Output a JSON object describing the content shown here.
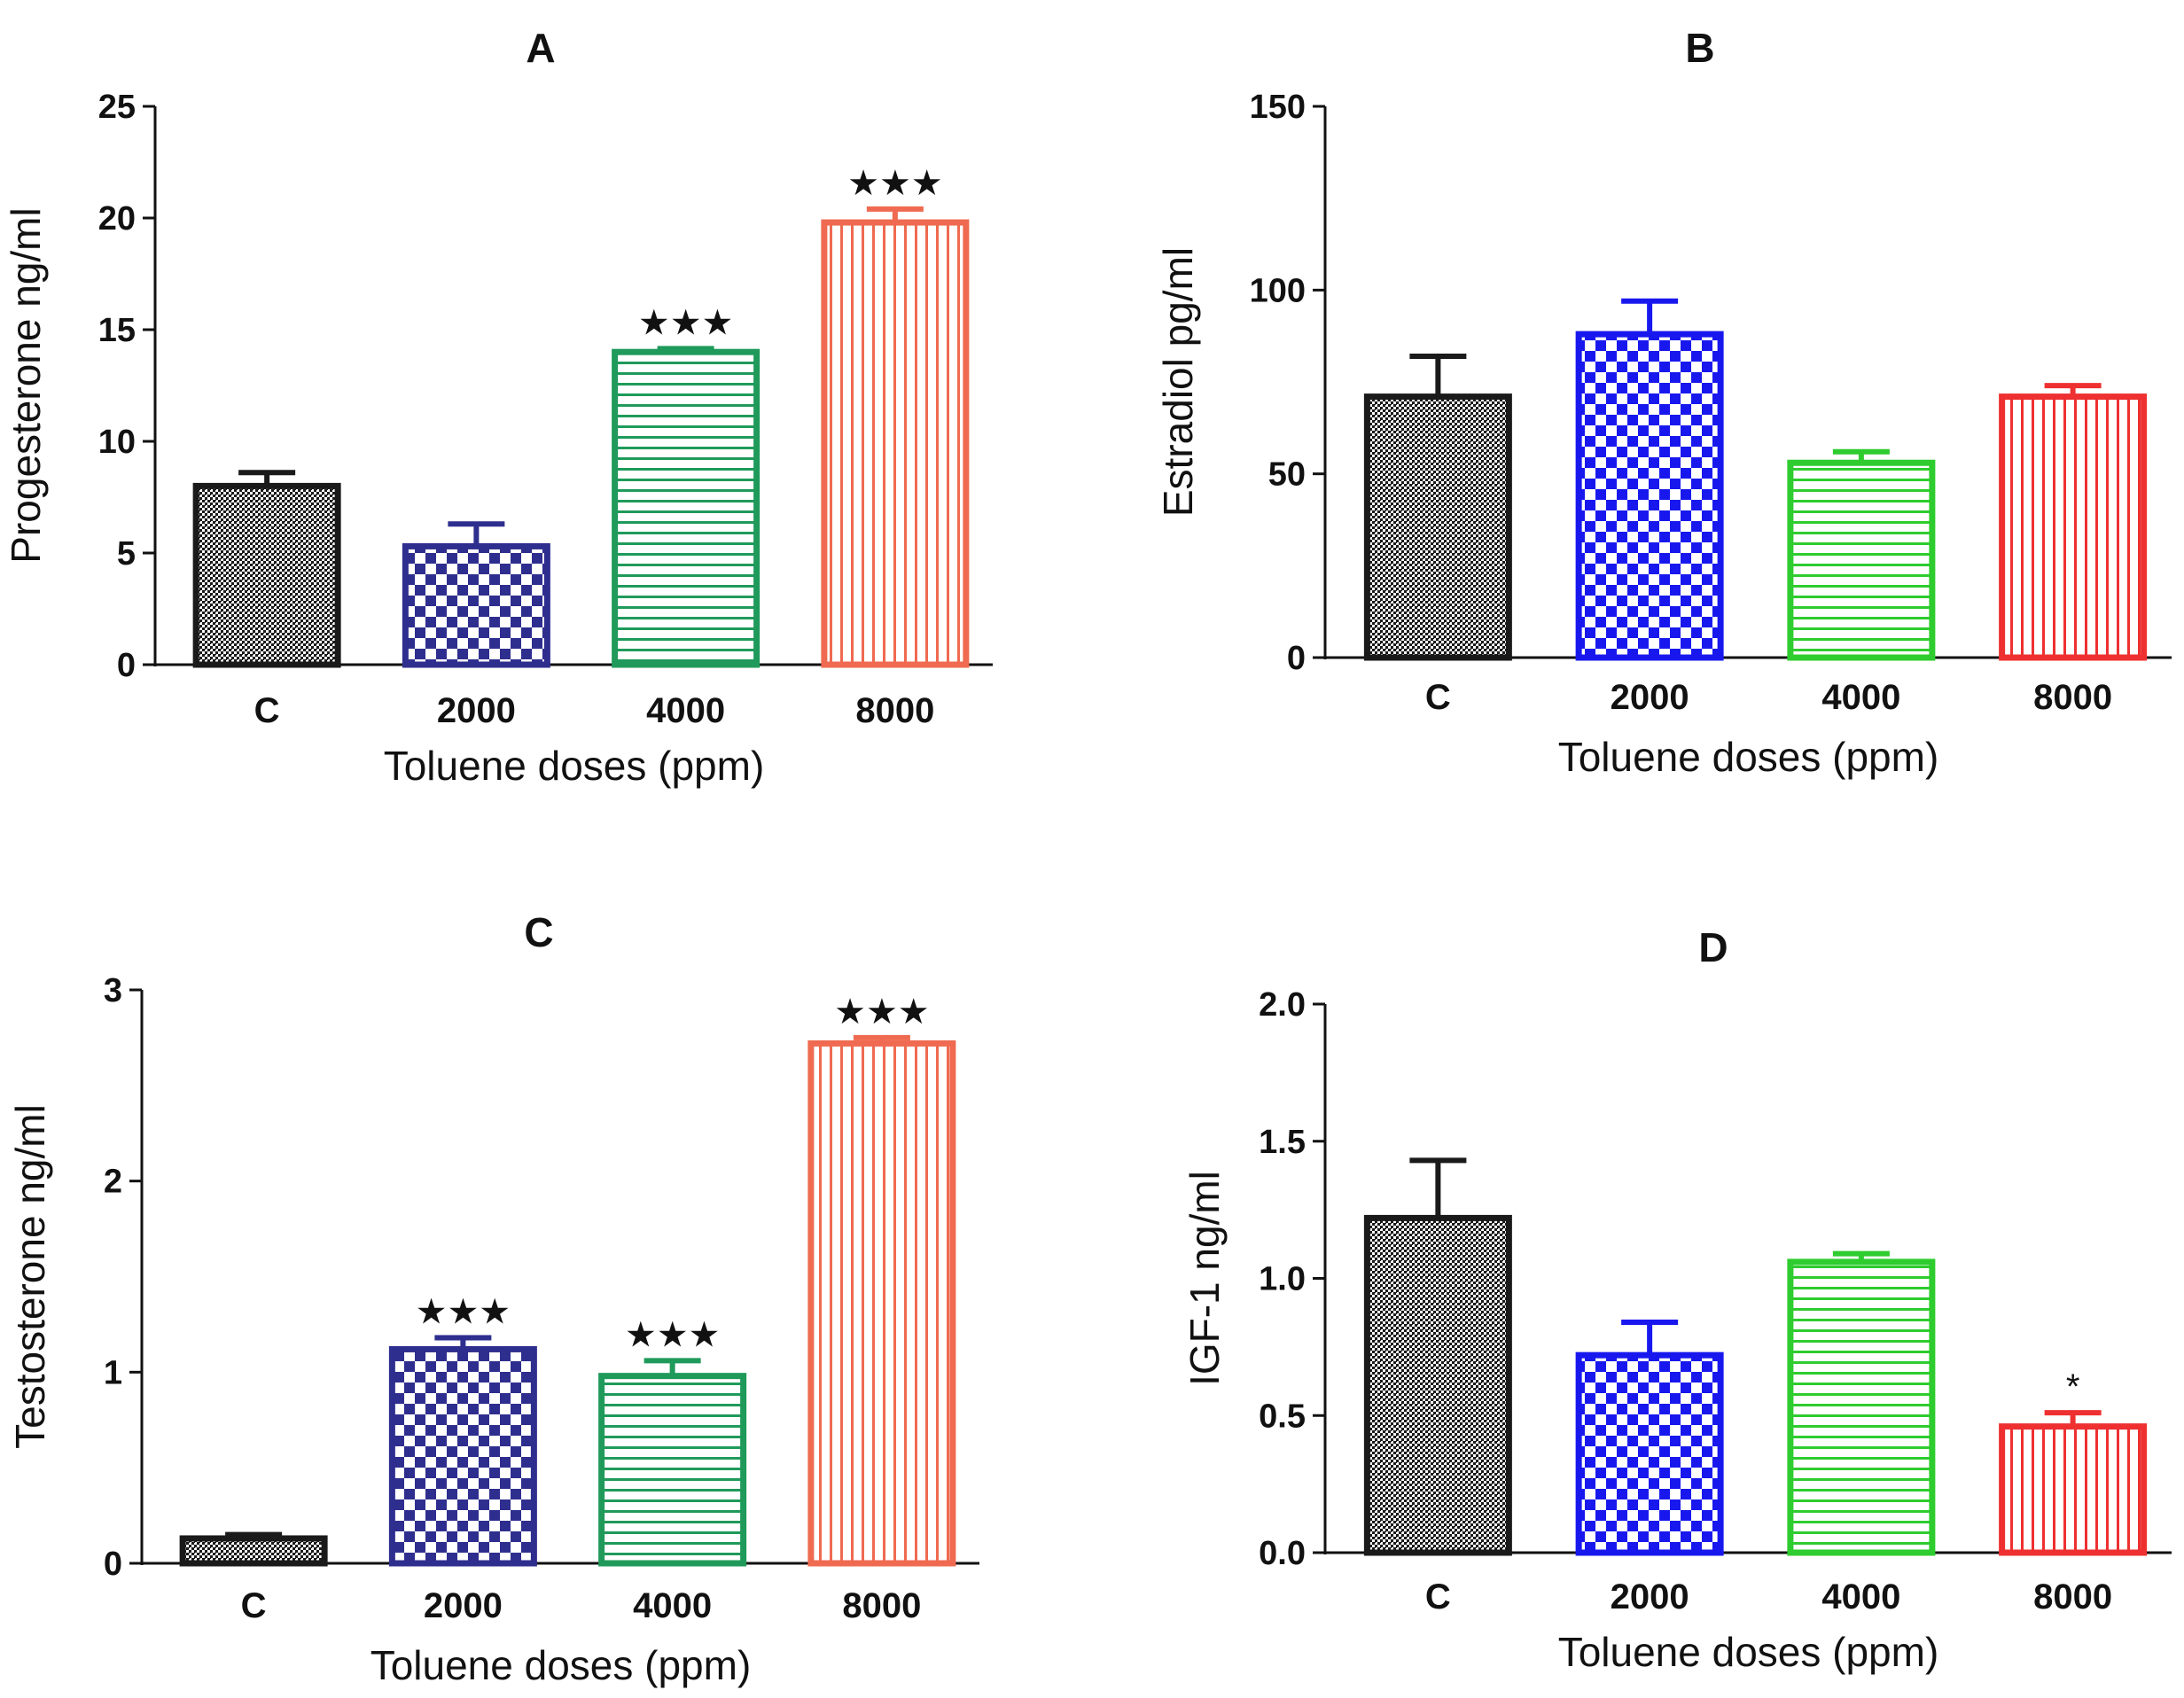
{
  "patterns": {
    "C": "dense-stipple",
    "2000": "checkerboard",
    "4000": "horizontal-stripes",
    "8000": "vertical-stripes"
  },
  "chart_data": [
    {
      "type": "bar",
      "panel": "A",
      "title": "A",
      "xlabel": "Toluene doses (ppm)",
      "ylabel": "Progesterone ng/ml",
      "ylim": [
        0,
        25
      ],
      "yticks": [
        0,
        5,
        10,
        15,
        20,
        25
      ],
      "ytick_labels": [
        "0",
        "5",
        "10",
        "15",
        "20",
        "25"
      ],
      "categories": [
        "C",
        "2000",
        "4000",
        "8000"
      ],
      "values": [
        8.0,
        5.3,
        14.0,
        19.8
      ],
      "errors": [
        0.6,
        1.0,
        0.15,
        0.6
      ],
      "significance": [
        "",
        "",
        "★★★",
        "★★★"
      ],
      "colors": [
        "#1a1a1a",
        "#2e2e8f",
        "#1f9a5a",
        "#ef6a50"
      ],
      "grid": false,
      "legend": "none"
    },
    {
      "type": "bar",
      "panel": "B",
      "title": "B",
      "xlabel": "Toluene doses (ppm)",
      "ylabel": "Estradiol pg/ml",
      "ylim": [
        0,
        150
      ],
      "yticks": [
        0,
        50,
        100,
        150
      ],
      "ytick_labels": [
        "0",
        "50",
        "100",
        "150"
      ],
      "categories": [
        "C",
        "2000",
        "4000",
        "8000"
      ],
      "values": [
        71,
        88,
        53,
        71
      ],
      "errors": [
        11,
        9,
        3,
        3
      ],
      "significance": [
        "",
        "",
        "",
        ""
      ],
      "colors": [
        "#1a1a1a",
        "#1818ee",
        "#2ecc2e",
        "#ee3030"
      ],
      "grid": false,
      "legend": "none"
    },
    {
      "type": "bar",
      "panel": "C",
      "title": "C",
      "xlabel": "Toluene doses (ppm)",
      "ylabel": "Testosterone ng/ml",
      "ylim": [
        0,
        3
      ],
      "yticks": [
        0,
        1,
        2,
        3
      ],
      "ytick_labels": [
        "0",
        "1",
        "2",
        "3"
      ],
      "categories": [
        "C",
        "2000",
        "4000",
        "8000"
      ],
      "values": [
        0.13,
        1.12,
        0.98,
        2.72
      ],
      "errors": [
        0.02,
        0.06,
        0.08,
        0.03
      ],
      "significance": [
        "",
        "★★★",
        "★★★",
        "★★★"
      ],
      "colors": [
        "#1a1a1a",
        "#2e2e8f",
        "#1f9a5a",
        "#ef6a50"
      ],
      "grid": false,
      "legend": "none"
    },
    {
      "type": "bar",
      "panel": "D",
      "title": "D",
      "xlabel": "Toluene doses (ppm)",
      "ylabel": "IGF-1 ng/ml",
      "ylim": [
        0,
        2.0
      ],
      "yticks": [
        0,
        0.5,
        1.0,
        1.5,
        2.0
      ],
      "ytick_labels": [
        "0.0",
        "0.5",
        "1.0",
        "1.5",
        "2.0"
      ],
      "categories": [
        "C",
        "2000",
        "4000",
        "8000"
      ],
      "values": [
        1.22,
        0.72,
        1.06,
        0.46
      ],
      "errors": [
        0.21,
        0.12,
        0.03,
        0.05
      ],
      "significance": [
        "",
        "",
        "",
        "*"
      ],
      "colors": [
        "#1a1a1a",
        "#1818ee",
        "#2ecc2e",
        "#ee3030"
      ],
      "grid": false,
      "legend": "none"
    }
  ]
}
